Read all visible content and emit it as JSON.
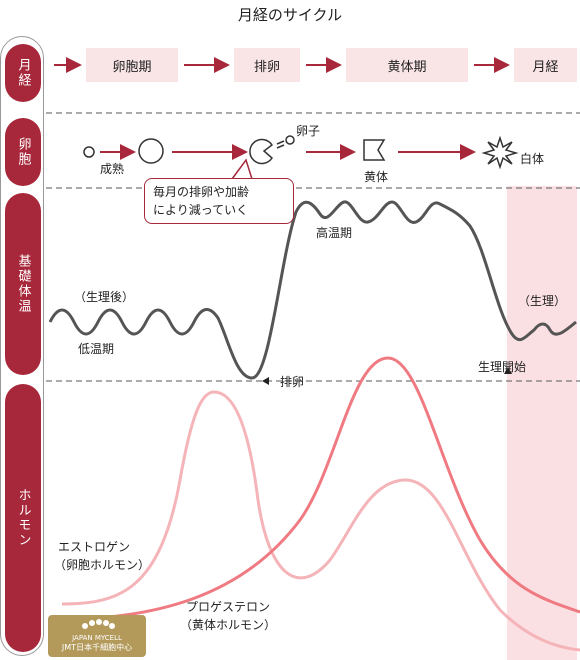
{
  "title": "月経のサイクル",
  "rows": {
    "menstruation": "月経",
    "egg": "卵胞",
    "temperature": "基礎体温",
    "hormone": "ホルモン"
  },
  "phases": [
    "卵胞期",
    "排卵",
    "黄体期",
    "月経"
  ],
  "egg_labels": {
    "maturation": "成熟",
    "egg": "卵子",
    "corpus_luteum": "黄体",
    "corpus_albicans": "白体"
  },
  "callout": {
    "line1": "毎月の排卵や加齢",
    "line2": "により減っていく"
  },
  "temp_labels": {
    "after_period": "（生理後）",
    "low_phase": "低温期",
    "ovulation": "排卵",
    "high_phase": "高温期",
    "period": "（生理）",
    "period_start": "生理開始"
  },
  "hormone_labels": {
    "estrogen_line1": "エストロゲン",
    "estrogen_line2": "（卵胞ホルモン）",
    "progesterone_line1": "プロゲステロン",
    "progesterone_line2": "（黄体ホルモン）"
  },
  "logo": {
    "line1": "JAPAN MYCELL",
    "line2": "JMT日本千細胞中心"
  },
  "colors": {
    "accent": "#a8283b",
    "phase_bg": "#f9e4e6",
    "period_band": "#fbe0e3",
    "temp_curve": "#555555",
    "estrogen": "#f4b4b8",
    "progesterone": "#f07a82"
  }
}
